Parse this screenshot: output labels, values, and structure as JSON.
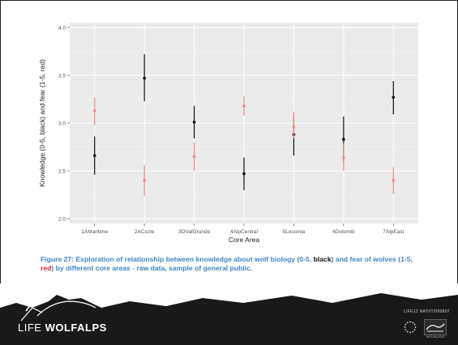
{
  "chart_data": {
    "type": "scatter",
    "subtype": "point-with-error-bars",
    "categories": [
      "1AMaritime",
      "2ACozie",
      "3OValGrande",
      "4AlpCentral",
      "5Lessinia",
      "6Dolomiti",
      "7AlpEast"
    ],
    "xlabel": "Core Area",
    "ylabel": "Knowledge (0-5, black) and fear (1-5, red)",
    "ylim": [
      1.95,
      4.05
    ],
    "yticks": [
      2.0,
      2.5,
      3.0,
      3.5,
      4.0
    ],
    "ytick_labels": [
      "2.0",
      "2.5",
      "3.0",
      "3.5",
      "4.0"
    ],
    "grid": true,
    "legend": "none",
    "series": [
      {
        "color": "#111111",
        "values": [
          2.66,
          3.47,
          3.01,
          2.47,
          2.88,
          2.83,
          3.27
        ],
        "lower": [
          2.46,
          3.23,
          2.84,
          2.3,
          2.66,
          2.6,
          3.09
        ],
        "upper": [
          2.86,
          3.72,
          3.18,
          2.64,
          3.08,
          3.07,
          3.44
        ]
      },
      {
        "color": "#ef8a80",
        "values": [
          3.13,
          2.4,
          2.65,
          3.18,
          2.96,
          2.64,
          2.4
        ],
        "lower": [
          2.98,
          2.24,
          2.5,
          3.08,
          2.84,
          2.5,
          2.26
        ],
        "upper": [
          3.27,
          2.56,
          2.8,
          3.28,
          3.12,
          2.79,
          2.54
        ]
      }
    ]
  },
  "caption": {
    "part1": "Figure 27: Exploration of relationship between knowledge about wolf biology (0-5, ",
    "black_word": "black",
    "part2": ") and fear of wolves (1-5, ",
    "red_word": "red",
    "part3": ") by different core areas - raw data, sample of general public."
  },
  "footer": {
    "brand_prefix": "LIFE ",
    "brand_name": "WOLFALPS",
    "project_code": "LIFE12 NAT/IT/000807",
    "life_logo_text": "NATURA 2000"
  },
  "colors": {
    "footer_bg": "#191919",
    "caption": "#3f86c6",
    "panel_bg": "#ebebeb"
  }
}
